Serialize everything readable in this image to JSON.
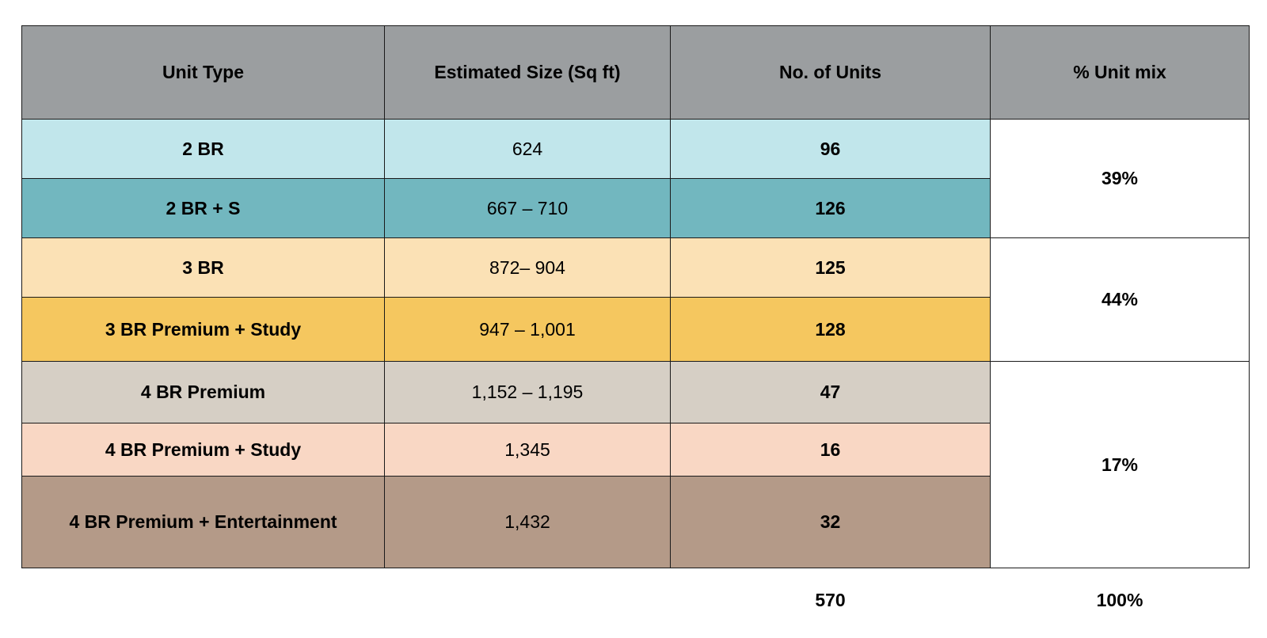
{
  "table": {
    "headers": [
      "Unit Type",
      "Estimated Size (Sq ft)",
      "No. of Units",
      "% Unit mix"
    ],
    "rows": [
      {
        "type": "2 BR",
        "size": "624",
        "units": "96",
        "bg": "#c1e6eb"
      },
      {
        "type": "2 BR + S",
        "size": "667 – 710",
        "units": "126",
        "bg": "#72b7bf"
      },
      {
        "type": "3 BR",
        "size": "872– 904",
        "units": "125",
        "bg": "#fbe1b5"
      },
      {
        "type": "3 BR Premium + Study",
        "size": "947 – 1,001",
        "units": "128",
        "bg": "#f5c75f"
      },
      {
        "type": "4 BR Premium",
        "size": "1,152 – 1,195",
        "units": "47",
        "bg": "#d6cfc5"
      },
      {
        "type": "4 BR Premium + Study",
        "size": "1,345",
        "units": "16",
        "bg": "#f9d7c4"
      },
      {
        "type": "4 BR Premium + Entertainment",
        "size": "1,432",
        "units": "32",
        "bg": "#b49a88"
      }
    ],
    "mix_groups": [
      "39%",
      "44%",
      "17%"
    ],
    "totals": {
      "units": "570",
      "mix": "100%"
    }
  }
}
